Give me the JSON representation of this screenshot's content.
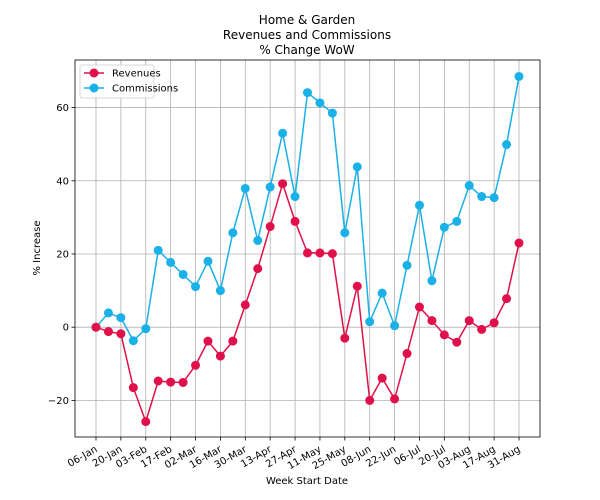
{
  "chart_data": {
    "type": "line",
    "title_lines": [
      "Home & Garden",
      "Revenues and Commissions",
      "% Change WoW"
    ],
    "xlabel": "Week Start Date",
    "ylabel": "% Increase",
    "ylim": [
      -30,
      73
    ],
    "yticks": [
      -20,
      0,
      20,
      40,
      60
    ],
    "ytick_labels": [
      "−20",
      "0",
      "20",
      "40",
      "60"
    ],
    "grid": true,
    "legend_position": "top-left",
    "x": [
      "2020-01-06",
      "2020-01-13",
      "2020-01-20",
      "2020-01-27",
      "2020-02-03",
      "2020-02-10",
      "2020-02-17",
      "2020-02-24",
      "2020-03-02",
      "2020-03-09",
      "2020-03-16",
      "2020-03-23",
      "2020-03-30",
      "2020-04-06",
      "2020-04-13",
      "2020-04-20",
      "2020-04-27",
      "2020-05-04",
      "2020-05-11",
      "2020-05-18",
      "2020-05-25",
      "2020-06-01",
      "2020-06-08",
      "2020-06-15",
      "2020-06-22",
      "2020-06-29",
      "2020-07-06",
      "2020-07-13",
      "2020-07-20",
      "2020-07-27",
      "2020-08-03",
      "2020-08-10",
      "2020-08-17",
      "2020-08-24",
      "2020-08-31"
    ],
    "xtick_labels": [
      "06-Jan",
      "20-Jan",
      "03-Feb",
      "17-Feb",
      "02-Mar",
      "16-Mar",
      "30-Mar",
      "13-Apr",
      "27-Apr",
      "11-May",
      "25-May",
      "08-Jun",
      "22-Jun",
      "06-Jul",
      "20-Jul",
      "03-Aug",
      "17-Aug",
      "31-Aug"
    ],
    "xtick_every": 2,
    "series": [
      {
        "name": "Revenues",
        "color": "#e0104a",
        "values": [
          0,
          -1.2,
          -1.8,
          -16.5,
          -25.8,
          -14.7,
          -15,
          -15.1,
          -10.4,
          -3.8,
          -7.9,
          -3.8,
          6.1,
          16,
          27.5,
          39.2,
          28.9,
          20.3,
          20.3,
          20.1,
          -3,
          11.2,
          -20,
          -13.9,
          -19.6,
          -7.2,
          5.5,
          1.8,
          -2.1,
          -4.1,
          1.8,
          -0.6,
          1.2,
          7.8,
          23
        ]
      },
      {
        "name": "Commissions",
        "color": "#1ab0e8",
        "values": [
          0,
          3.9,
          2.6,
          -3.7,
          -0.4,
          21,
          17.7,
          14.4,
          11.1,
          18,
          10,
          25.8,
          37.9,
          23.7,
          38.3,
          53,
          35.7,
          64.1,
          61.3,
          58.5,
          25.8,
          43.8,
          1.5,
          9.3,
          0.4,
          16.9,
          33.3,
          12.7,
          27.3,
          28.9,
          38.7,
          35.7,
          35.4,
          49.9,
          68.5
        ]
      }
    ]
  }
}
